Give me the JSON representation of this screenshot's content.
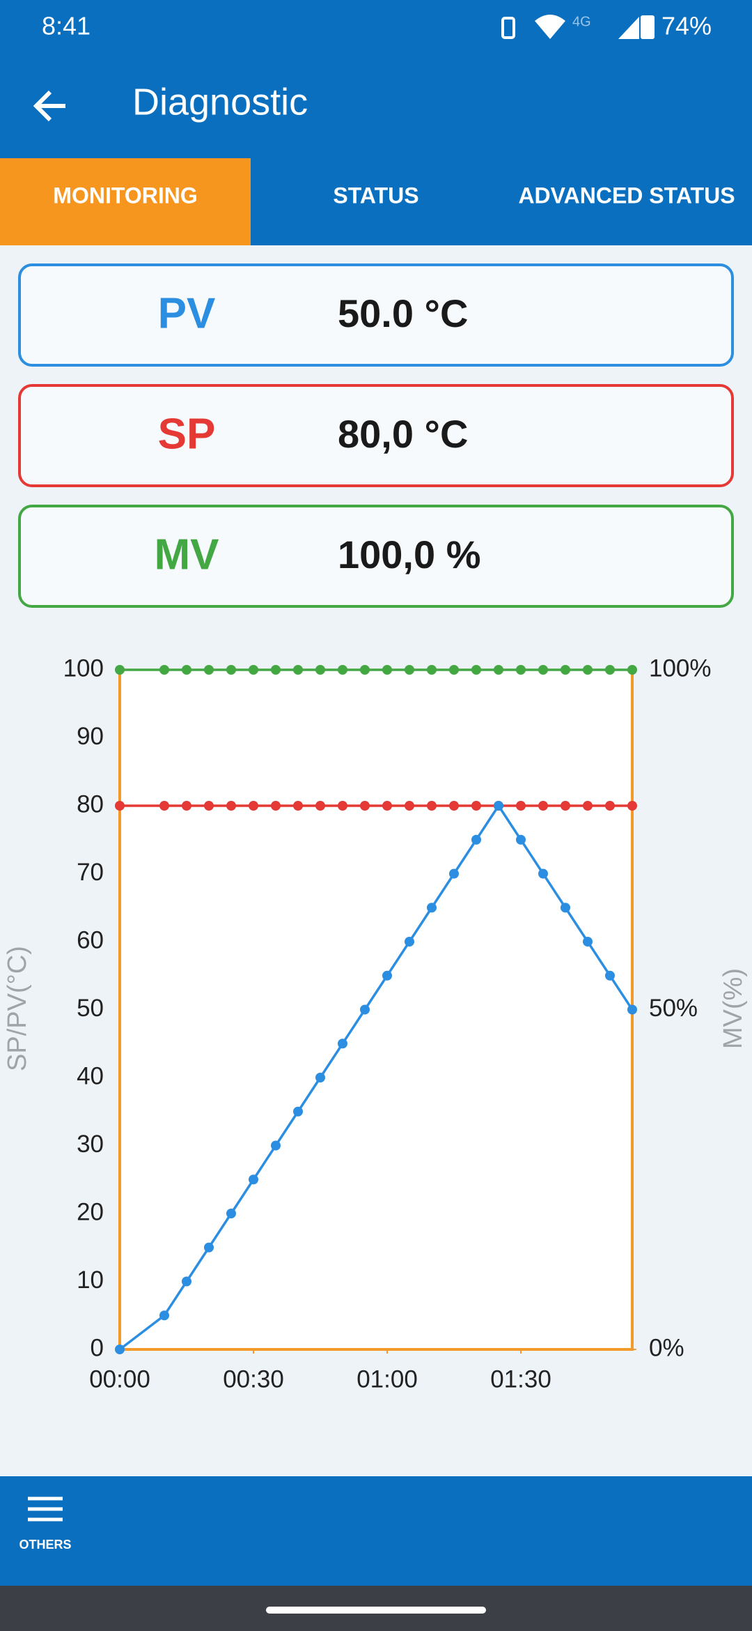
{
  "status_bar": {
    "time": "8:41",
    "network": "4G",
    "battery": "74%"
  },
  "header": {
    "title": "Diagnostic"
  },
  "tabs": {
    "items": [
      "MONITORING",
      "STATUS",
      "ADVANCED STATUS"
    ],
    "active": 0
  },
  "cards": [
    {
      "label": "PV",
      "value": "50.0 °C",
      "color": "#2b8ee0"
    },
    {
      "label": "SP",
      "value": "80,0 °C",
      "color": "#e53935"
    },
    {
      "label": "MV",
      "value": "100,0 %",
      "color": "#43a843"
    }
  ],
  "chart_data": {
    "type": "line",
    "ylabel": "SP/PV(°C)",
    "y2label": "MV(%)",
    "x": [
      0,
      10,
      15,
      20,
      25,
      30,
      35,
      40,
      45,
      50,
      55,
      60,
      65,
      70,
      75,
      80,
      85,
      90,
      95,
      100,
      105,
      110,
      115
    ],
    "xlim": [
      0,
      115
    ],
    "xticks": [
      {
        "value": 0,
        "label": "00:00"
      },
      {
        "value": 30,
        "label": "00:30"
      },
      {
        "value": 60,
        "label": "01:00"
      },
      {
        "value": 90,
        "label": "01:30"
      }
    ],
    "ylim": [
      0,
      100
    ],
    "yticks": [
      0,
      10,
      20,
      30,
      40,
      50,
      60,
      70,
      80,
      90,
      100
    ],
    "y2lim": [
      0,
      100
    ],
    "y2ticks": [
      {
        "value": 0,
        "label": "0%"
      },
      {
        "value": 50,
        "label": "50%"
      },
      {
        "value": 100,
        "label": "100%"
      }
    ],
    "frame_color": "#f39a2b",
    "series": [
      {
        "name": "MV",
        "color": "#43a843",
        "axis": "y2",
        "values": [
          100,
          100,
          100,
          100,
          100,
          100,
          100,
          100,
          100,
          100,
          100,
          100,
          100,
          100,
          100,
          100,
          100,
          100,
          100,
          100,
          100,
          100,
          100
        ]
      },
      {
        "name": "SP",
        "color": "#e53935",
        "values": [
          80,
          80,
          80,
          80,
          80,
          80,
          80,
          80,
          80,
          80,
          80,
          80,
          80,
          80,
          80,
          80,
          80,
          80,
          80,
          80,
          80,
          80,
          80
        ]
      },
      {
        "name": "PV",
        "color": "#2b8ee0",
        "values": [
          0,
          5,
          10,
          15,
          20,
          25,
          30,
          35,
          40,
          45,
          50,
          55,
          60,
          65,
          70,
          75,
          80,
          75,
          70,
          65,
          60,
          55,
          50
        ]
      }
    ]
  },
  "bottom_nav": {
    "label": "OTHERS"
  }
}
